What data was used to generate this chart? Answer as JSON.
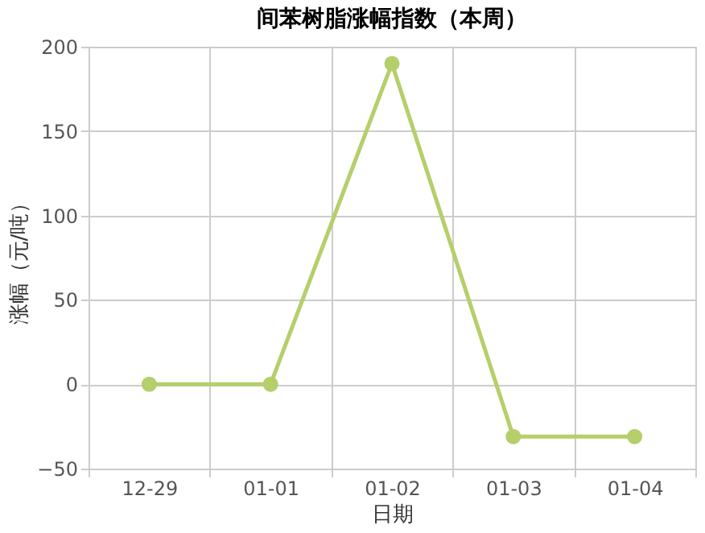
{
  "chart_data": {
    "type": "line",
    "title": "间苯树脂涨幅指数（本周）",
    "xlabel": "日期",
    "ylabel": "涨幅（元/吨）",
    "categories": [
      "12-29",
      "01-01",
      "01-02",
      "01-03",
      "01-04"
    ],
    "series": [
      {
        "color": "#b5cf6b",
        "values": [
          0,
          0,
          190,
          -31,
          -31
        ]
      }
    ],
    "ylim": [
      -50,
      200
    ],
    "yticks": [
      -50,
      0,
      50,
      100,
      150,
      200
    ],
    "grid": true,
    "marker": "circle",
    "line_style": "solid"
  }
}
